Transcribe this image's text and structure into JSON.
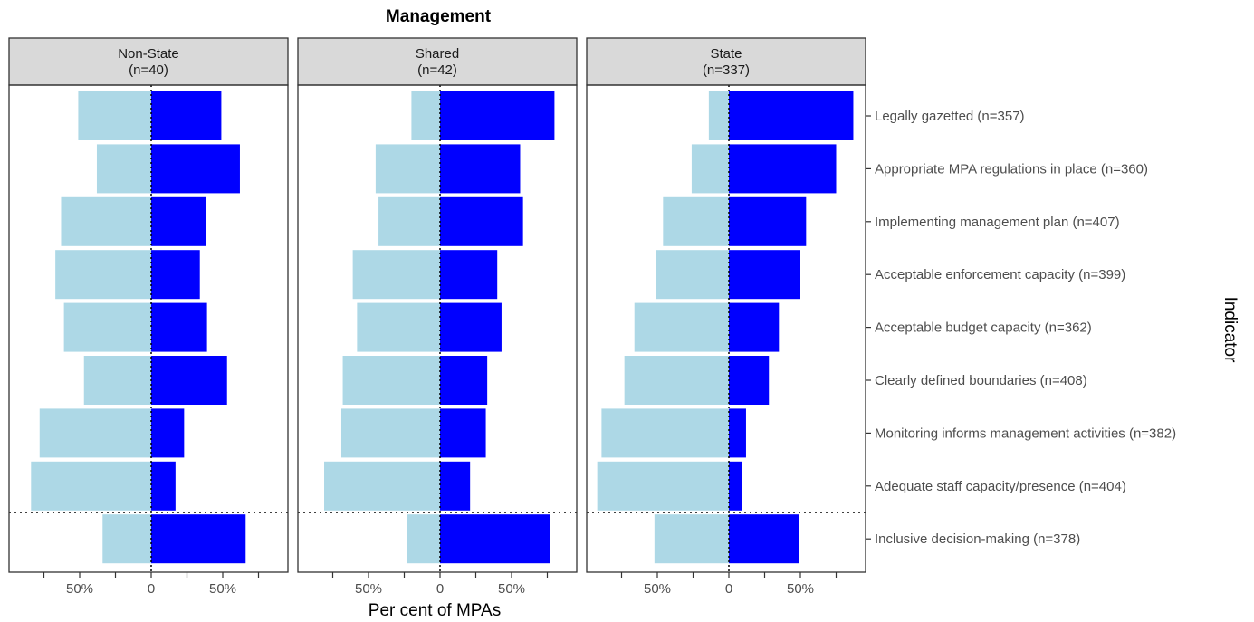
{
  "chart_data": {
    "type": "bar",
    "title": "Management",
    "xlabel": "Per cent of MPAs",
    "ylabel": "Indicator",
    "xlim": [
      -1.0,
      1.0
    ],
    "x_ticks": [
      -0.5,
      0,
      0.5
    ],
    "x_tick_labels": [
      "50%",
      "0",
      "50%"
    ],
    "colors": {
      "negative": "#add8e6",
      "positive": "#0000ff",
      "strip": "#d9d9d9"
    },
    "categories": [
      "Legally gazetted (n=357)",
      "Appropriate MPA regulations in place (n=360)",
      "Implementing management plan (n=407)",
      "Acceptable enforcement capacity (n=399)",
      "Acceptable budget capacity (n=362)",
      "Clearly defined boundaries (n=408)",
      "Monitoring informs management activities (n=382)",
      "Adequate staff capacity/presence (n=404)",
      "Inclusive decision-making (n=378)"
    ],
    "separator_after_index": 7,
    "panels": [
      {
        "title_line1": "Non-State",
        "title_line2": "(n=40)",
        "negative": [
          0.51,
          0.38,
          0.63,
          0.67,
          0.61,
          0.47,
          0.78,
          0.84,
          0.34
        ],
        "positive": [
          0.49,
          0.62,
          0.38,
          0.34,
          0.39,
          0.53,
          0.23,
          0.17,
          0.66
        ]
      },
      {
        "title_line1": "Shared",
        "title_line2": "(n=42)",
        "negative": [
          0.2,
          0.45,
          0.43,
          0.61,
          0.58,
          0.68,
          0.69,
          0.81,
          0.23
        ],
        "positive": [
          0.8,
          0.56,
          0.58,
          0.4,
          0.43,
          0.33,
          0.32,
          0.21,
          0.77
        ]
      },
      {
        "title_line1": "State",
        "title_line2": "(n=337)",
        "negative": [
          0.14,
          0.26,
          0.46,
          0.51,
          0.66,
          0.73,
          0.89,
          0.92,
          0.52
        ],
        "positive": [
          0.87,
          0.75,
          0.54,
          0.5,
          0.35,
          0.28,
          0.12,
          0.09,
          0.49
        ]
      }
    ]
  }
}
